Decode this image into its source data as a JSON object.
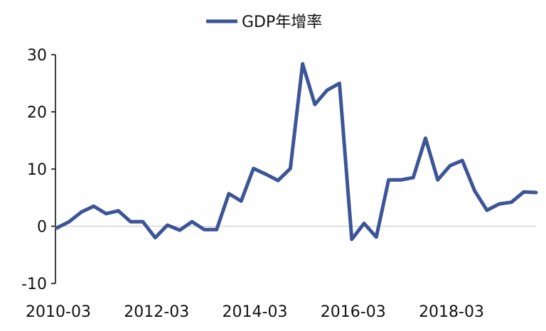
{
  "chart_data": {
    "type": "line",
    "legend": {
      "position": "top-center"
    },
    "series": [
      {
        "name": "GDP年增率",
        "color": "#3b5597",
        "values": [
          -0.3,
          0.8,
          2.5,
          3.5,
          2.2,
          2.7,
          0.8,
          0.8,
          -2.0,
          0.2,
          -0.7,
          0.8,
          -0.6,
          -0.6,
          5.7,
          4.4,
          10.1,
          9.1,
          8.0,
          10.1,
          28.4,
          21.3,
          23.8,
          25.0,
          -2.3,
          0.5,
          -1.9,
          8.1,
          8.1,
          8.5,
          15.4,
          8.1,
          10.6,
          11.5,
          6.2,
          2.8,
          3.9,
          4.2,
          6.0,
          5.9
        ]
      }
    ],
    "x_tick_labels": [
      "2010-03",
      "2012-03",
      "2014-03",
      "2016-03",
      "2018-03"
    ],
    "x_tick_indices": [
      0,
      8,
      16,
      24,
      32
    ],
    "y_ticks": [
      "30",
      "20",
      "10",
      "0",
      "-10"
    ],
    "ylim": [
      -10,
      30
    ],
    "grid": false,
    "zero_line": true
  }
}
